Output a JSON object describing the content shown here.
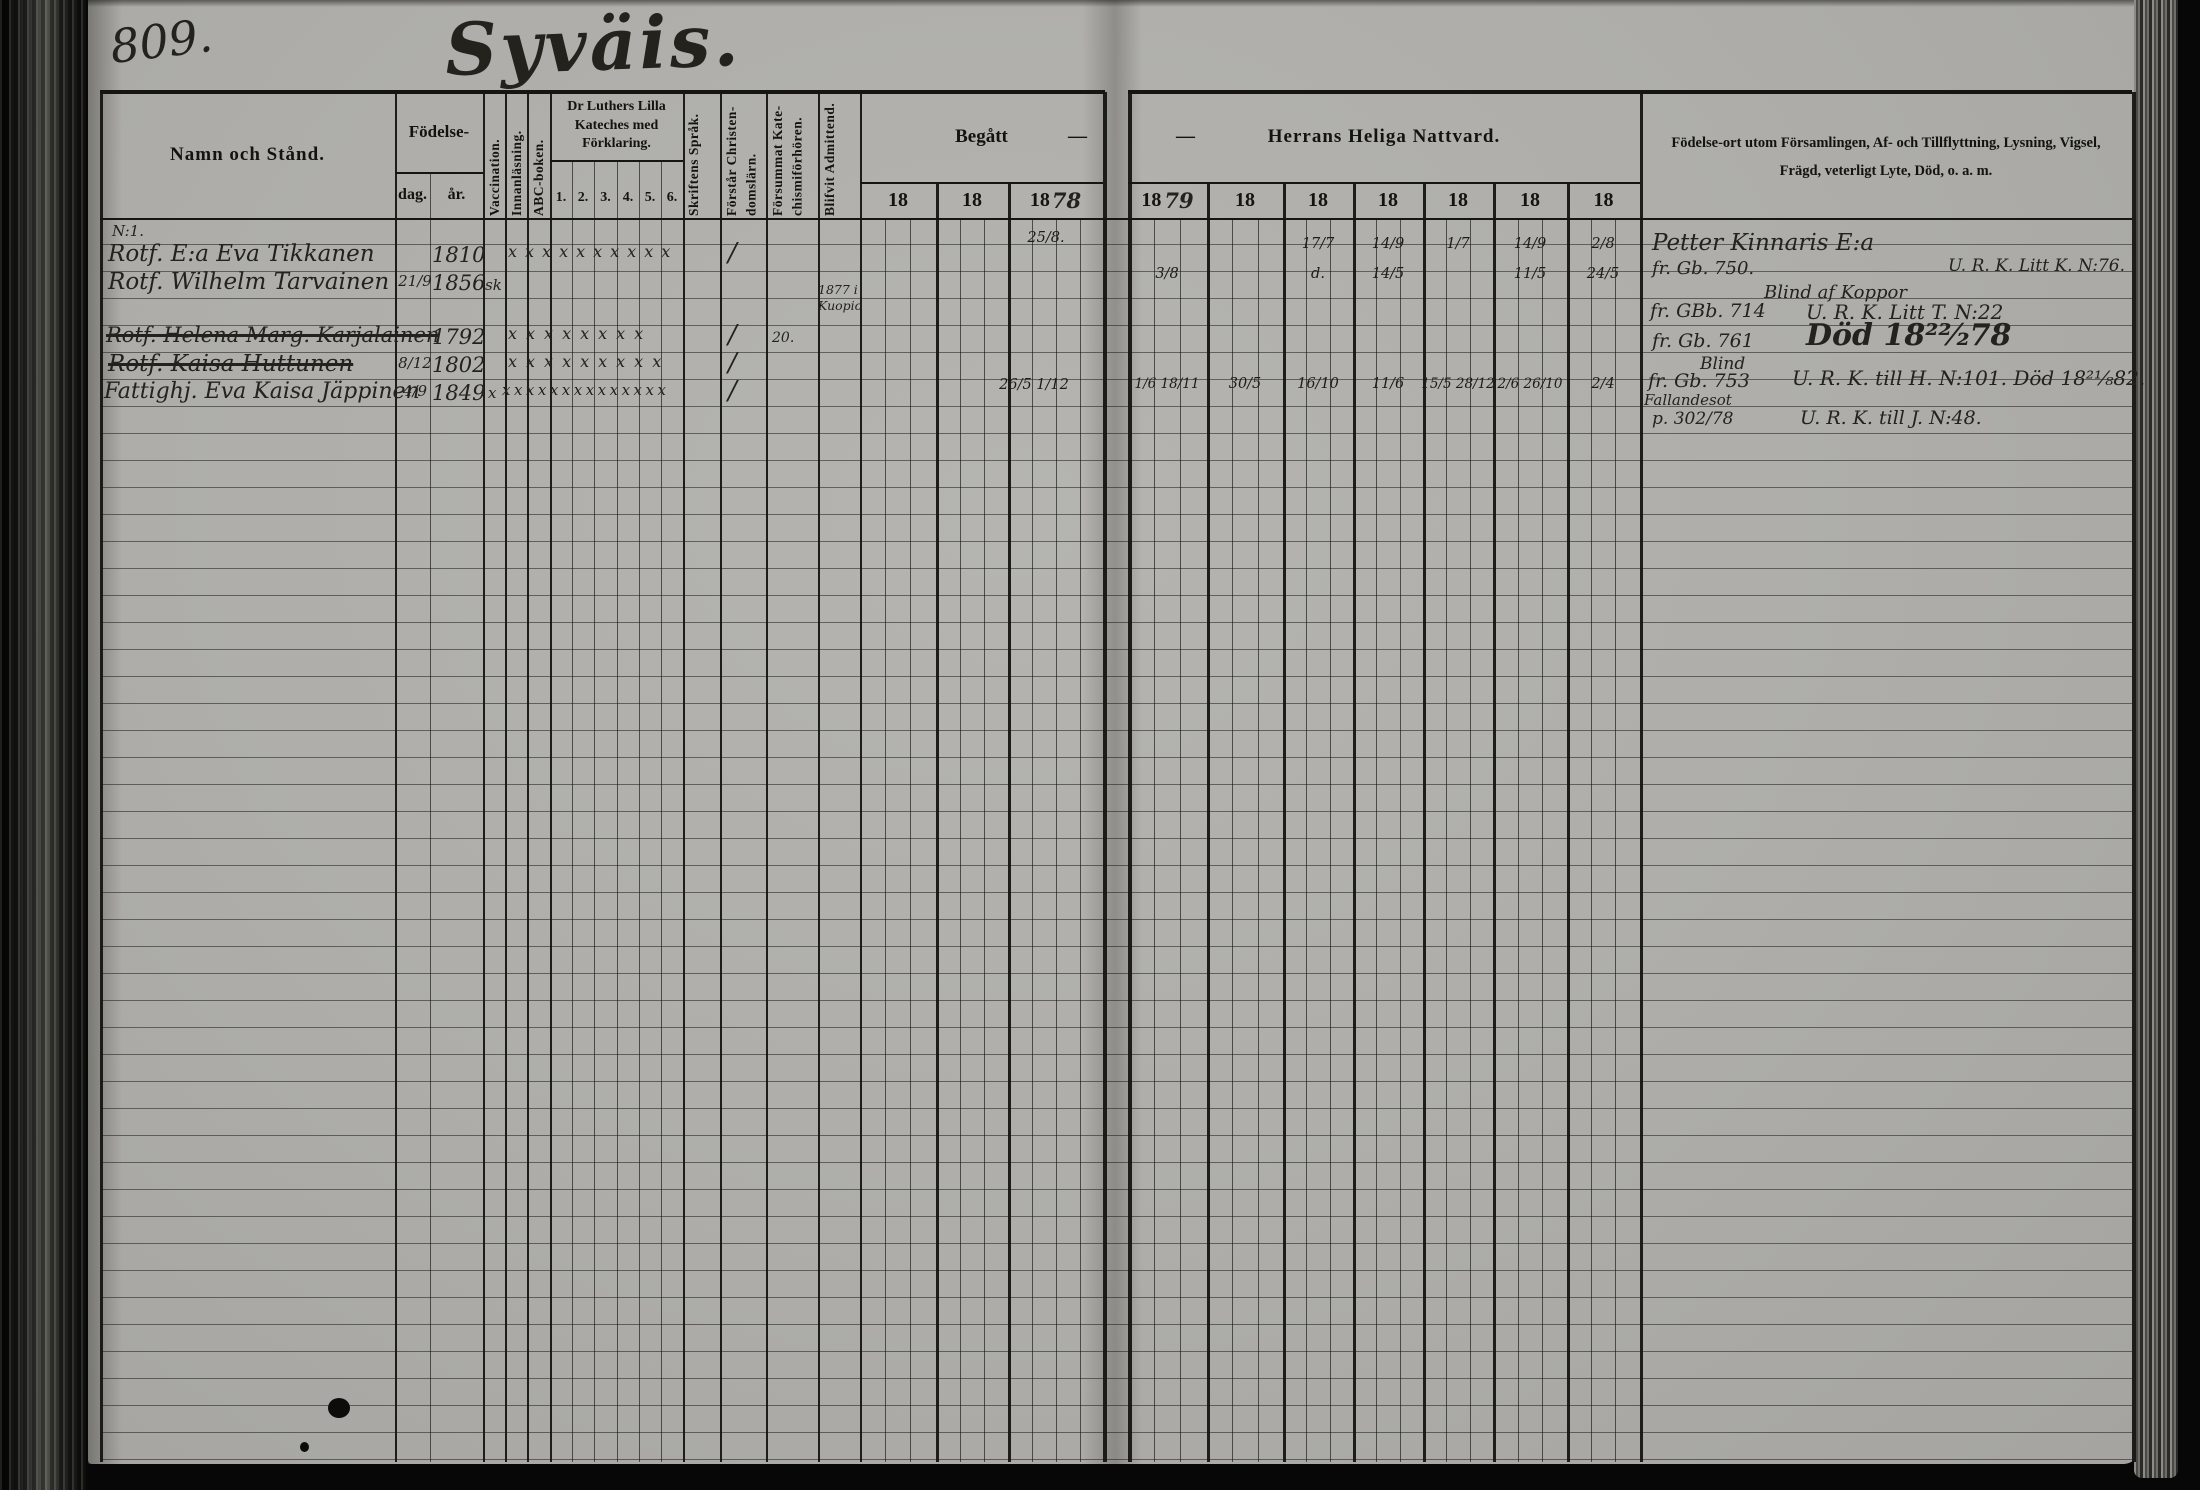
{
  "page": {
    "number": "809.",
    "title": "Syväis."
  },
  "header": {
    "name": "Namn och Stånd.",
    "birth": "Födelse-",
    "birth_day": "dag.",
    "birth_year": "år.",
    "vaccination": "Vaccination.",
    "reading": "Innanläsning.",
    "abc": "ABC-boken.",
    "catechism": "Dr Luthers Lilla Kateches med Förklaring.",
    "catechism_cols": [
      "1.",
      "2.",
      "3.",
      "4.",
      "5.",
      "6."
    ],
    "scripture": "Skriftens Språk.",
    "understands": "Förstår Christen­domslärn.",
    "missed": "Försummat Kate­chismiförhören.",
    "admitted": "Blifvit Admit­tend.",
    "communion_left": "Begått",
    "communion_left_dash": "—",
    "communion_right_dash": "—",
    "communion_right": "Herrans Heliga Nattvard.",
    "begatt_years": [
      "18",
      "18",
      "18"
    ],
    "begatt_years_hand": [
      "",
      "",
      "78"
    ],
    "nattvard_years": [
      "18",
      "18",
      "18",
      "18",
      "18",
      "18",
      "18"
    ],
    "nattvard_years_hand": [
      "79",
      "",
      "",
      "",
      "",
      "",
      ""
    ],
    "notes_line1": "Födelse-ort utom Församlingen, Af- och Tillflyttning, Lysning, Vigsel,",
    "notes_line2": "Frägd, veterligt Lyte, Död, o. a. m."
  },
  "entries": {
    "first_label": "N:1.",
    "rows": [
      {
        "name": "Rotf. E:a Eva Tikkanen",
        "struck": false,
        "birth_day": "",
        "birth_year": "1810",
        "vacc": "",
        "marks": "xxxxxxxxxx",
        "understands": "/",
        "missed": "",
        "admitted": "",
        "begatt": [
          "",
          "",
          "25/8."
        ],
        "nattvard": [
          "",
          "",
          "17/7",
          "14/9",
          "1/7",
          "14/9",
          "2/8"
        ],
        "note1": "Petter Kinnaris E:a",
        "note1r": "",
        "note2": "fr. Gb. 750.",
        "note2r": "U. R. K. Litt K. N:76."
      },
      {
        "name": "Rotf. Wilhelm Tarvainen",
        "struck": false,
        "birth_day": "21/9",
        "birth_year": "1856",
        "vacc": "sk",
        "marks": "",
        "understands": "",
        "missed": "",
        "admitted": "1877 i Kuopio",
        "begatt": [
          "",
          "",
          ""
        ],
        "nattvard": [
          "3/8",
          "",
          "d.",
          "14/5",
          "",
          "11/5",
          "24/5"
        ],
        "note1": "Blind af Koppor",
        "note1r": "",
        "note2": "fr. GBb. 714",
        "note2r": "U. R. K. Litt T. N:22"
      },
      {
        "name": "Rotf. Helena Marg. Karjalainen",
        "struck": true,
        "birth_day": "",
        "birth_year": "1792",
        "vacc": "",
        "marks": "xxxxxxxx",
        "understands": "/",
        "missed": "20.",
        "admitted": "",
        "begatt": [
          "",
          "",
          ""
        ],
        "nattvard": [
          "",
          "",
          "",
          "",
          "",
          "",
          ""
        ],
        "note1": "fr. Gb. 761",
        "note1r": "Död 18²²⁄₂78",
        "note2": "Blind",
        "note2r": ""
      },
      {
        "name": "Rotf. Kaisa Huttunen",
        "struck": true,
        "birth_day": "8/12",
        "birth_year": "1802",
        "vacc": "",
        "marks": "xxxxxxxxx",
        "understands": "/",
        "missed": "",
        "admitted": "",
        "begatt": [
          "",
          "",
          ""
        ],
        "nattvard": [
          "",
          "",
          "",
          "",
          "",
          "",
          ""
        ],
        "note1": "fr. Gb. 753",
        "note1r": "U. R. K. till H. N:101.  Död 18²¹⁄₈82.",
        "note2": "",
        "note2r": ""
      },
      {
        "name": "Fattighj. Eva Kaisa Jäppinen",
        "struck": false,
        "birth_day": "4/9",
        "birth_year": "1849",
        "vacc": "x",
        "marks": "xxxxxxxxxxxxxx",
        "understands": "/",
        "missed": "",
        "admitted": "",
        "begatt": [
          "",
          "",
          "26/5  1/12"
        ],
        "nattvard": [
          "1/6 18/11",
          "30/5",
          "16/10",
          "11/6",
          "15/5 28/12",
          "2/6 26/10",
          "2/4"
        ],
        "note1": "Fallandesot",
        "note1r": "",
        "note2": "p. 302/78",
        "note2r": "U. R. K. till J. N:48."
      }
    ]
  }
}
